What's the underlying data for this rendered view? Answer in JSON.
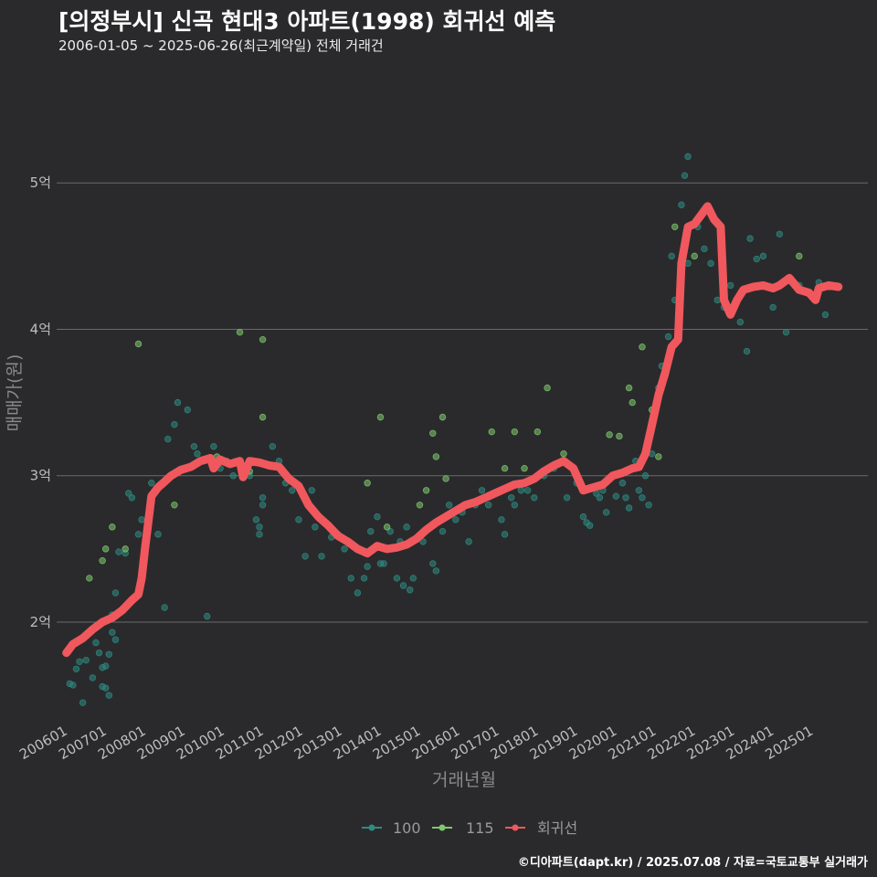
{
  "chart_data": {
    "type": "scatter",
    "title": "[의정부시] 신곡 현대3 아파트(1998) 회귀선 예측",
    "subtitle": "2006-01-05 ~ 2025-06-26(최근계약일) 전체 거래건",
    "xlabel": "거래년월",
    "ylabel": "매매가(원)",
    "caption": "©디아파트(dapt.kr) / 2025.07.08 / 자료=국토교통부 실거래가",
    "x_tick_labels": [
      "200601",
      "200701",
      "200801",
      "200901",
      "201001",
      "201101",
      "201201",
      "201301",
      "201401",
      "201501",
      "201601",
      "201701",
      "201801",
      "201901",
      "202001",
      "202101",
      "202201",
      "202301",
      "202401",
      "202501"
    ],
    "y_tick_labels": [
      "2억",
      "3억",
      "4억",
      "5억"
    ],
    "y_ticks": [
      2,
      3,
      4,
      5
    ],
    "xlim": [
      "2005-10",
      "2026-06"
    ],
    "ylim": [
      1.32,
      5.75
    ],
    "y_unit": "억",
    "grid": "horizontal",
    "legend_position": "bottom",
    "colors": {
      "s100": "#2e8b82",
      "s115": "#7ec86e",
      "regression": "#f0585d",
      "background": "#2a2a2c",
      "grid": "#6a6a6a"
    },
    "series": [
      {
        "name": "100",
        "kind": "points",
        "color": "#2e8b82",
        "points": [
          [
            "2006-02",
            1.58
          ],
          [
            "2006-03",
            1.57
          ],
          [
            "2006-04",
            1.68
          ],
          [
            "2006-05",
            1.73
          ],
          [
            "2006-06",
            1.45
          ],
          [
            "2006-07",
            1.74
          ],
          [
            "2006-09",
            1.62
          ],
          [
            "2006-10",
            1.86
          ],
          [
            "2006-11",
            1.79
          ],
          [
            "2006-12",
            1.56
          ],
          [
            "2006-12",
            1.69
          ],
          [
            "2007-01",
            1.7
          ],
          [
            "2007-01",
            1.55
          ],
          [
            "2007-02",
            1.78
          ],
          [
            "2007-02",
            1.5
          ],
          [
            "2007-03",
            1.93
          ],
          [
            "2007-03",
            2.05
          ],
          [
            "2007-04",
            2.2
          ],
          [
            "2007-04",
            1.88
          ],
          [
            "2007-05",
            2.48
          ],
          [
            "2007-07",
            2.47
          ],
          [
            "2007-08",
            2.88
          ],
          [
            "2007-09",
            2.85
          ],
          [
            "2007-11",
            2.6
          ],
          [
            "2007-12",
            2.7
          ],
          [
            "2008-03",
            2.95
          ],
          [
            "2008-05",
            2.6
          ],
          [
            "2008-07",
            2.1
          ],
          [
            "2008-08",
            3.25
          ],
          [
            "2008-10",
            3.35
          ],
          [
            "2008-11",
            3.5
          ],
          [
            "2009-02",
            3.45
          ],
          [
            "2009-04",
            3.2
          ],
          [
            "2009-05",
            3.15
          ],
          [
            "2009-07",
            3.1
          ],
          [
            "2009-08",
            2.04
          ],
          [
            "2009-10",
            3.2
          ],
          [
            "2009-12",
            3.05
          ],
          [
            "2010-02",
            3.1
          ],
          [
            "2010-04",
            3.0
          ],
          [
            "2010-07",
            3.05
          ],
          [
            "2010-09",
            3.0
          ],
          [
            "2010-11",
            2.7
          ],
          [
            "2010-12",
            2.65
          ],
          [
            "2010-12",
            2.6
          ],
          [
            "2011-01",
            2.85
          ],
          [
            "2011-01",
            2.8
          ],
          [
            "2011-04",
            3.2
          ],
          [
            "2011-06",
            3.1
          ],
          [
            "2011-08",
            2.95
          ],
          [
            "2011-10",
            2.9
          ],
          [
            "2011-12",
            2.7
          ],
          [
            "2012-02",
            2.45
          ],
          [
            "2012-04",
            2.9
          ],
          [
            "2012-05",
            2.65
          ],
          [
            "2012-07",
            2.45
          ],
          [
            "2012-10",
            2.58
          ],
          [
            "2012-12",
            2.6
          ],
          [
            "2013-02",
            2.5
          ],
          [
            "2013-04",
            2.3
          ],
          [
            "2013-06",
            2.2
          ],
          [
            "2013-08",
            2.3
          ],
          [
            "2013-09",
            2.38
          ],
          [
            "2013-10",
            2.62
          ],
          [
            "2013-11",
            2.5
          ],
          [
            "2013-12",
            2.72
          ],
          [
            "2014-01",
            2.4
          ],
          [
            "2014-02",
            2.4
          ],
          [
            "2014-04",
            2.62
          ],
          [
            "2014-06",
            2.3
          ],
          [
            "2014-07",
            2.55
          ],
          [
            "2014-08",
            2.25
          ],
          [
            "2014-09",
            2.65
          ],
          [
            "2014-10",
            2.22
          ],
          [
            "2014-11",
            2.3
          ],
          [
            "2015-02",
            2.55
          ],
          [
            "2015-05",
            2.4
          ],
          [
            "2015-06",
            2.35
          ],
          [
            "2015-08",
            2.62
          ],
          [
            "2015-10",
            2.8
          ],
          [
            "2015-12",
            2.7
          ],
          [
            "2016-02",
            2.75
          ],
          [
            "2016-04",
            2.55
          ],
          [
            "2016-06",
            2.8
          ],
          [
            "2016-08",
            2.9
          ],
          [
            "2016-10",
            2.8
          ],
          [
            "2017-02",
            2.7
          ],
          [
            "2017-03",
            2.6
          ],
          [
            "2017-05",
            2.85
          ],
          [
            "2017-06",
            2.8
          ],
          [
            "2017-08",
            2.9
          ],
          [
            "2017-10",
            2.9
          ],
          [
            "2017-12",
            2.85
          ],
          [
            "2018-03",
            3.0
          ],
          [
            "2018-06",
            3.05
          ],
          [
            "2018-10",
            2.85
          ],
          [
            "2019-01",
            2.95
          ],
          [
            "2019-03",
            2.72
          ],
          [
            "2019-04",
            2.68
          ],
          [
            "2019-05",
            2.66
          ],
          [
            "2019-07",
            2.88
          ],
          [
            "2019-08",
            2.85
          ],
          [
            "2019-09",
            2.9
          ],
          [
            "2019-10",
            2.75
          ],
          [
            "2019-12",
            3.0
          ],
          [
            "2020-01",
            2.86
          ],
          [
            "2020-03",
            2.95
          ],
          [
            "2020-04",
            2.85
          ],
          [
            "2020-05",
            2.78
          ],
          [
            "2020-07",
            3.1
          ],
          [
            "2020-08",
            2.9
          ],
          [
            "2020-09",
            2.85
          ],
          [
            "2020-10",
            3.0
          ],
          [
            "2020-11",
            2.8
          ],
          [
            "2020-12",
            3.15
          ],
          [
            "2021-02",
            3.6
          ],
          [
            "2021-03",
            3.75
          ],
          [
            "2021-05",
            3.95
          ],
          [
            "2021-06",
            4.5
          ],
          [
            "2021-07",
            4.2
          ],
          [
            "2021-09",
            4.85
          ],
          [
            "2021-10",
            5.05
          ],
          [
            "2021-11",
            4.45
          ],
          [
            "2021-11",
            5.18
          ],
          [
            "2022-02",
            4.7
          ],
          [
            "2022-04",
            4.55
          ],
          [
            "2022-06",
            4.45
          ],
          [
            "2022-08",
            4.2
          ],
          [
            "2022-10",
            4.15
          ],
          [
            "2022-12",
            4.3
          ],
          [
            "2023-03",
            4.05
          ],
          [
            "2023-05",
            3.85
          ],
          [
            "2023-06",
            4.62
          ],
          [
            "2023-08",
            4.48
          ],
          [
            "2023-10",
            4.5
          ],
          [
            "2024-01",
            4.15
          ],
          [
            "2024-03",
            4.65
          ],
          [
            "2024-05",
            3.98
          ],
          [
            "2024-09",
            4.3
          ],
          [
            "2025-03",
            4.32
          ],
          [
            "2025-05",
            4.1
          ]
        ]
      },
      {
        "name": "115",
        "kind": "points",
        "color": "#7ec86e",
        "points": [
          [
            "2006-08",
            2.3
          ],
          [
            "2006-12",
            2.42
          ],
          [
            "2007-01",
            2.5
          ],
          [
            "2007-03",
            2.65
          ],
          [
            "2007-07",
            2.5
          ],
          [
            "2007-11",
            3.9
          ],
          [
            "2008-03",
            2.87
          ],
          [
            "2008-10",
            2.8
          ],
          [
            "2009-11",
            3.13
          ],
          [
            "2010-06",
            3.98
          ],
          [
            "2010-09",
            3.03
          ],
          [
            "2011-01",
            3.93
          ],
          [
            "2011-01",
            3.4
          ],
          [
            "2013-09",
            2.95
          ],
          [
            "2014-01",
            3.4
          ],
          [
            "2014-03",
            2.65
          ],
          [
            "2015-01",
            2.8
          ],
          [
            "2015-03",
            2.9
          ],
          [
            "2015-05",
            3.29
          ],
          [
            "2015-06",
            3.13
          ],
          [
            "2015-08",
            3.4
          ],
          [
            "2015-09",
            2.98
          ],
          [
            "2016-11",
            3.3
          ],
          [
            "2017-03",
            3.05
          ],
          [
            "2017-06",
            3.3
          ],
          [
            "2017-09",
            3.05
          ],
          [
            "2018-01",
            3.3
          ],
          [
            "2018-04",
            3.6
          ],
          [
            "2018-09",
            3.15
          ],
          [
            "2019-11",
            3.28
          ],
          [
            "2020-02",
            3.27
          ],
          [
            "2020-05",
            3.6
          ],
          [
            "2020-06",
            3.5
          ],
          [
            "2020-09",
            3.88
          ],
          [
            "2020-12",
            3.45
          ],
          [
            "2021-02",
            3.13
          ],
          [
            "2021-07",
            4.7
          ],
          [
            "2022-01",
            4.5
          ],
          [
            "2024-09",
            4.5
          ]
        ]
      },
      {
        "name": "회귀선",
        "kind": "line",
        "color": "#f0585d",
        "points": [
          [
            "2006-01",
            1.79
          ],
          [
            "2006-03",
            1.85
          ],
          [
            "2006-06",
            1.89
          ],
          [
            "2006-09",
            1.95
          ],
          [
            "2006-12",
            2.0
          ],
          [
            "2007-03",
            2.03
          ],
          [
            "2007-06",
            2.08
          ],
          [
            "2007-09",
            2.15
          ],
          [
            "2007-11",
            2.19
          ],
          [
            "2007-12",
            2.3
          ],
          [
            "2008-01",
            2.5
          ],
          [
            "2008-03",
            2.86
          ],
          [
            "2008-05",
            2.92
          ],
          [
            "2008-07",
            2.96
          ],
          [
            "2008-09",
            3.0
          ],
          [
            "2008-12",
            3.04
          ],
          [
            "2009-03",
            3.06
          ],
          [
            "2009-06",
            3.1
          ],
          [
            "2009-09",
            3.12
          ],
          [
            "2009-10",
            3.05
          ],
          [
            "2009-12",
            3.11
          ],
          [
            "2010-03",
            3.08
          ],
          [
            "2010-06",
            3.1
          ],
          [
            "2010-07",
            2.99
          ],
          [
            "2010-09",
            3.1
          ],
          [
            "2010-12",
            3.09
          ],
          [
            "2011-03",
            3.07
          ],
          [
            "2011-06",
            3.06
          ],
          [
            "2011-09",
            2.98
          ],
          [
            "2011-12",
            2.93
          ],
          [
            "2012-03",
            2.8
          ],
          [
            "2012-06",
            2.72
          ],
          [
            "2012-09",
            2.66
          ],
          [
            "2012-12",
            2.59
          ],
          [
            "2013-03",
            2.55
          ],
          [
            "2013-06",
            2.5
          ],
          [
            "2013-09",
            2.47
          ],
          [
            "2013-12",
            2.52
          ],
          [
            "2014-03",
            2.5
          ],
          [
            "2014-06",
            2.51
          ],
          [
            "2014-09",
            2.53
          ],
          [
            "2014-12",
            2.57
          ],
          [
            "2015-03",
            2.63
          ],
          [
            "2015-06",
            2.68
          ],
          [
            "2015-09",
            2.72
          ],
          [
            "2015-12",
            2.76
          ],
          [
            "2016-03",
            2.8
          ],
          [
            "2016-06",
            2.82
          ],
          [
            "2016-09",
            2.85
          ],
          [
            "2016-12",
            2.88
          ],
          [
            "2017-03",
            2.91
          ],
          [
            "2017-06",
            2.94
          ],
          [
            "2017-09",
            2.95
          ],
          [
            "2017-12",
            2.98
          ],
          [
            "2018-03",
            3.03
          ],
          [
            "2018-06",
            3.07
          ],
          [
            "2018-09",
            3.1
          ],
          [
            "2018-12",
            3.05
          ],
          [
            "2019-03",
            2.9
          ],
          [
            "2019-06",
            2.92
          ],
          [
            "2019-09",
            2.94
          ],
          [
            "2019-12",
            3.0
          ],
          [
            "2020-03",
            3.02
          ],
          [
            "2020-06",
            3.05
          ],
          [
            "2020-08",
            3.06
          ],
          [
            "2020-10",
            3.15
          ],
          [
            "2020-12",
            3.35
          ],
          [
            "2021-02",
            3.55
          ],
          [
            "2021-04",
            3.7
          ],
          [
            "2021-06",
            3.88
          ],
          [
            "2021-08",
            3.93
          ],
          [
            "2021-09",
            4.45
          ],
          [
            "2021-11",
            4.7
          ],
          [
            "2022-01",
            4.72
          ],
          [
            "2022-03",
            4.78
          ],
          [
            "2022-05",
            4.84
          ],
          [
            "2022-07",
            4.75
          ],
          [
            "2022-09",
            4.7
          ],
          [
            "2022-10",
            4.2
          ],
          [
            "2022-12",
            4.1
          ],
          [
            "2023-02",
            4.2
          ],
          [
            "2023-04",
            4.27
          ],
          [
            "2023-07",
            4.29
          ],
          [
            "2023-10",
            4.3
          ],
          [
            "2024-01",
            4.28
          ],
          [
            "2024-03",
            4.3
          ],
          [
            "2024-06",
            4.35
          ],
          [
            "2024-09",
            4.27
          ],
          [
            "2024-12",
            4.25
          ],
          [
            "2025-02",
            4.2
          ],
          [
            "2025-03",
            4.28
          ],
          [
            "2025-06",
            4.3
          ],
          [
            "2025-09",
            4.29
          ]
        ]
      }
    ]
  }
}
